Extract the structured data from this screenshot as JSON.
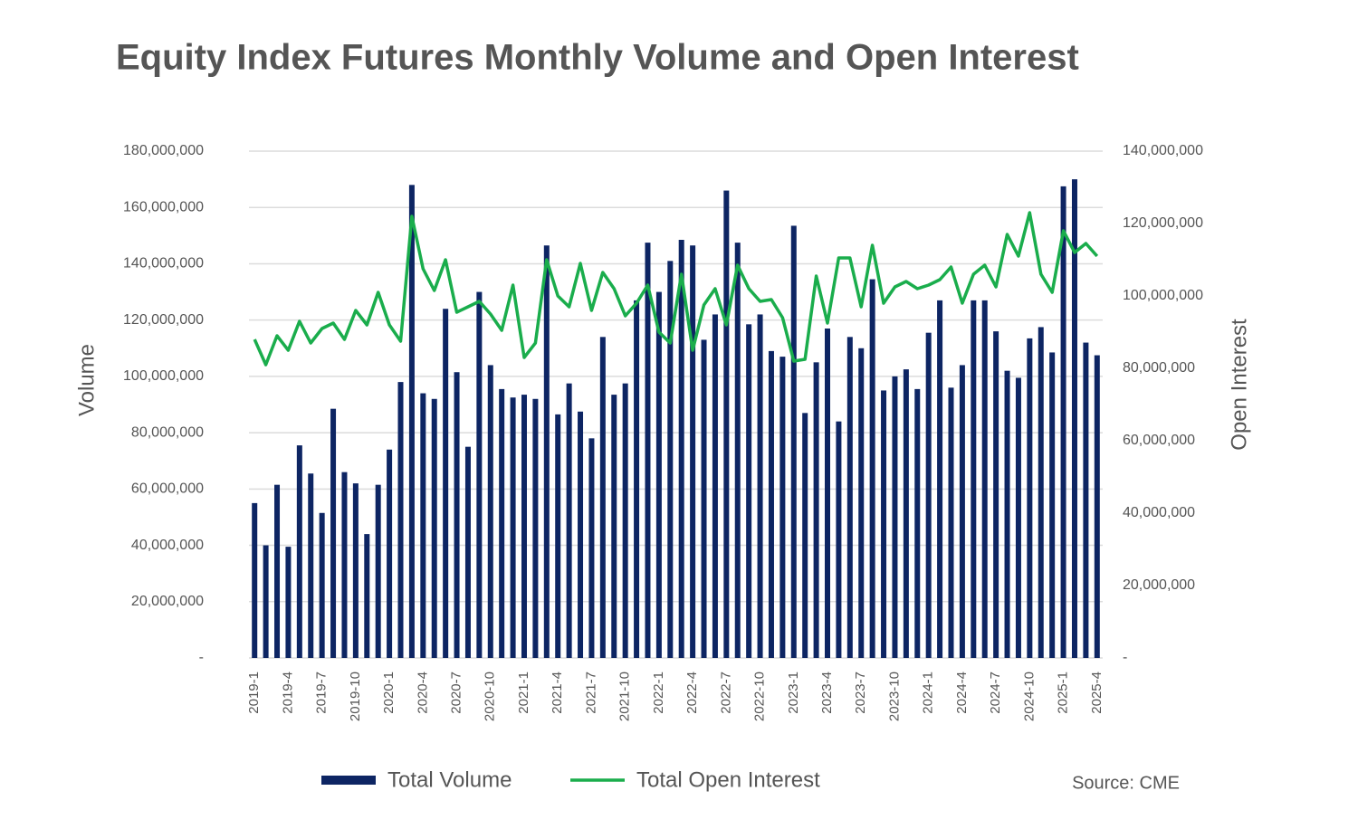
{
  "chart_data": {
    "type": "bar",
    "title": "Equity Index Futures Monthly Volume and Open Interest",
    "ylabel": "Volume",
    "y2label": "Open Interest",
    "source": "Source: CME",
    "categories": [
      "2019-1",
      null,
      null,
      "2019-4",
      null,
      null,
      "2019-7",
      null,
      null,
      "2019-10",
      null,
      null,
      "2020-1",
      null,
      null,
      "2020-4",
      null,
      null,
      "2020-7",
      null,
      null,
      "2020-10",
      null,
      null,
      "2021-1",
      null,
      null,
      "2021-4",
      null,
      null,
      "2021-7",
      null,
      null,
      "2021-10",
      null,
      null,
      "2022-1",
      null,
      null,
      "2022-4",
      null,
      null,
      "2022-7",
      null,
      null,
      "2022-10",
      null,
      null,
      "2023-1",
      null,
      null,
      "2023-4",
      null,
      null,
      "2023-7",
      null,
      null,
      "2023-10",
      null,
      null,
      "2024-1",
      null,
      null,
      "2024-4",
      null,
      null,
      "2024-7",
      null,
      null,
      "2024-10",
      null,
      null,
      "2025-1",
      null,
      null,
      "2025-4"
    ],
    "series": [
      {
        "name": "Total Volume",
        "type": "bar",
        "color": "#0d2563",
        "values": [
          55000000,
          40000000,
          61500000,
          39500000,
          75500000,
          65500000,
          51500000,
          88500000,
          66000000,
          62000000,
          44000000,
          61500000,
          74000000,
          98000000,
          168000000,
          94000000,
          92000000,
          124000000,
          101500000,
          75000000,
          130000000,
          104000000,
          95500000,
          92500000,
          93500000,
          92000000,
          146500000,
          86500000,
          97500000,
          87500000,
          78000000,
          114000000,
          93500000,
          97500000,
          127000000,
          147500000,
          130000000,
          141000000,
          148500000,
          146500000,
          113000000,
          122000000,
          166000000,
          147500000,
          118500000,
          122000000,
          109000000,
          107000000,
          153500000,
          87000000,
          105000000,
          117000000,
          84000000,
          114000000,
          110000000,
          134500000,
          95000000,
          100000000,
          102500000,
          95500000,
          115500000,
          127000000,
          96000000,
          104000000,
          127000000,
          127000000,
          116000000,
          102000000,
          99500000,
          113500000,
          117500000,
          108500000,
          167500000,
          170000000,
          112000000,
          107500000
        ]
      },
      {
        "name": "Total Open Interest",
        "type": "line",
        "axis": "y2",
        "color": "#1aad4c",
        "values": [
          88000000,
          81000000,
          89000000,
          85000000,
          93000000,
          87000000,
          91000000,
          92500000,
          88000000,
          96000000,
          92000000,
          101000000,
          92000000,
          87500000,
          122000000,
          107500000,
          101500000,
          110000000,
          95500000,
          97000000,
          98500000,
          95000000,
          90500000,
          103000000,
          83000000,
          87000000,
          110000000,
          100000000,
          97000000,
          109000000,
          96000000,
          106500000,
          102000000,
          94500000,
          98000000,
          103000000,
          90000000,
          87000000,
          106000000,
          85000000,
          97500000,
          102000000,
          92000000,
          108500000,
          102000000,
          98500000,
          99000000,
          94000000,
          82000000,
          82500000,
          105500000,
          92500000,
          110500000,
          110500000,
          97000000,
          114000000,
          98000000,
          102500000,
          104000000,
          102000000,
          103000000,
          104500000,
          108000000,
          98000000,
          106000000,
          108500000,
          102500000,
          117000000,
          111000000,
          123000000,
          106000000,
          101000000,
          118000000,
          112000000,
          114500000,
          111000000
        ]
      }
    ],
    "ylim": [
      0,
      180000000
    ],
    "yticks": [
      {
        "value": 0,
        "label": "-"
      },
      {
        "value": 20000000,
        "label": "20,000,000"
      },
      {
        "value": 40000000,
        "label": "40,000,000"
      },
      {
        "value": 60000000,
        "label": "60,000,000"
      },
      {
        "value": 80000000,
        "label": "80,000,000"
      },
      {
        "value": 100000000,
        "label": "100,000,000"
      },
      {
        "value": 120000000,
        "label": "120,000,000"
      },
      {
        "value": 140000000,
        "label": "140,000,000"
      },
      {
        "value": 160000000,
        "label": "160,000,000"
      },
      {
        "value": 180000000,
        "label": "180,000,000"
      }
    ],
    "y2lim": [
      0,
      140000000
    ],
    "y2ticks": [
      {
        "value": 0,
        "label": "-"
      },
      {
        "value": 20000000,
        "label": "20,000,000"
      },
      {
        "value": 40000000,
        "label": "40,000,000"
      },
      {
        "value": 60000000,
        "label": "60,000,000"
      },
      {
        "value": 80000000,
        "label": "80,000,000"
      },
      {
        "value": 100000000,
        "label": "100,000,000"
      },
      {
        "value": 120000000,
        "label": "120,000,000"
      },
      {
        "value": 140000000,
        "label": "140,000,000"
      }
    ],
    "grid": true,
    "legend": "bottom"
  }
}
